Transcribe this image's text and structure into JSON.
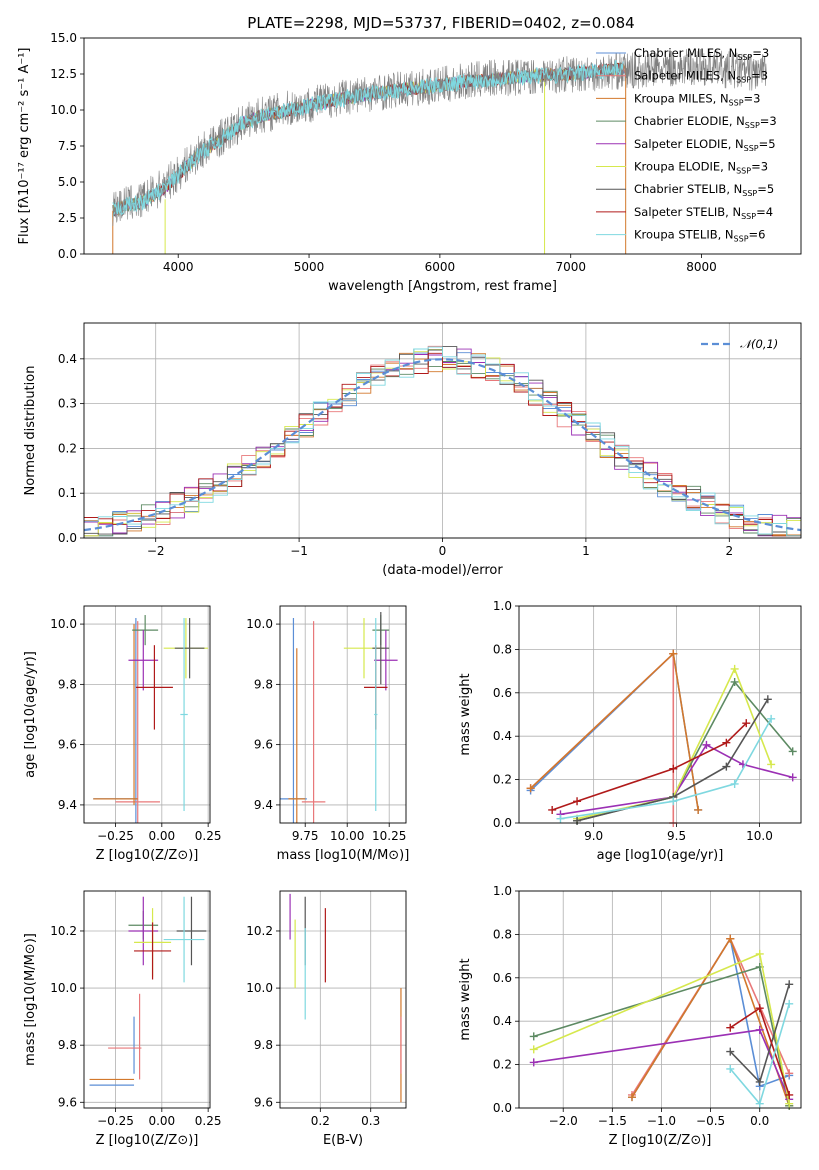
{
  "figure": {
    "title": "PLATE=2298, MJD=53737, FIBERID=0402, z=0.084"
  },
  "chart_data": [
    {
      "type": "line",
      "panel": "spectrum",
      "title": "PLATE=2298, MJD=53737, FIBERID=0402, z=0.084",
      "xlabel": "wavelength [Angstrom, rest frame]",
      "ylabel": "Flux [fλ10⁻¹⁷ erg cm⁻² s⁻¹ A⁻¹]",
      "xlim": [
        3280,
        8760
      ],
      "ylim": [
        0,
        15
      ],
      "xticks": [
        "4000",
        "5000",
        "6000",
        "7000",
        "8000"
      ],
      "yticks": [
        "0.0",
        "2.5",
        "5.0",
        "7.5",
        "10.0",
        "12.5",
        "15.0"
      ],
      "grid": false,
      "legend_position": "top-right",
      "legend": [
        {
          "label": "Chabrier MILES, N_SSP=3",
          "text": "Chabrier MILES, N",
          "sub": "SSP",
          "tail": "=3",
          "color": "#5b8ed6"
        },
        {
          "label": "Salpeter MILES, N_SSP=3",
          "text": "Salpeter MILES, N",
          "sub": "SSP",
          "tail": "=3",
          "color": "#e8787a"
        },
        {
          "label": "Kroupa MILES, N_SSP=3",
          "text": "Kroupa MILES, N",
          "sub": "SSP",
          "tail": "=3",
          "color": "#d2782c"
        },
        {
          "label": "Chabrier ELODIE, N_SSP=3",
          "text": "Chabrier ELODIE, N",
          "sub": "SSP",
          "tail": "=3",
          "color": "#5d8a63"
        },
        {
          "label": "Salpeter ELODIE, N_SSP=5",
          "text": "Salpeter ELODIE, N",
          "sub": "SSP",
          "tail": "=5",
          "color": "#9b30b4"
        },
        {
          "label": "Kroupa ELODIE, N_SSP=3",
          "text": "Kroupa ELODIE, N",
          "sub": "SSP",
          "tail": "=3",
          "color": "#d6e84d"
        },
        {
          "label": "Chabrier STELIB, N_SSP=5",
          "text": "Chabrier STELIB, N",
          "sub": "SSP",
          "tail": "=5",
          "color": "#555555"
        },
        {
          "label": "Salpeter STELIB, N_SSP=4",
          "text": "Salpeter STELIB, N",
          "sub": "SSP",
          "tail": "=4",
          "color": "#b01a1a"
        },
        {
          "label": "Kroupa STELIB, N_SSP=6",
          "text": "Kroupa STELIB, N",
          "sub": "SSP",
          "tail": "=6",
          "color": "#7fd8e0"
        }
      ],
      "series": [
        {
          "name": "data",
          "color": "#808080",
          "x": [
            3500,
            3600,
            3700,
            3800,
            3900,
            4000,
            4100,
            4200,
            4300,
            4400,
            4500,
            4600,
            4800,
            5000,
            5200,
            5400,
            5600,
            5800,
            6000,
            6200,
            6400,
            6600,
            6800,
            7000,
            7200,
            7400,
            7600,
            7800,
            8000,
            8200,
            8400
          ],
          "y": [
            3.2,
            3.5,
            3.6,
            4.2,
            4.8,
            5.6,
            6.5,
            7.3,
            7.9,
            8.5,
            9.2,
            9.6,
            10.0,
            10.4,
            10.8,
            11.1,
            11.3,
            11.5,
            11.7,
            12.0,
            12.2,
            12.3,
            12.4,
            12.5,
            12.6,
            12.7,
            12.8,
            12.9,
            13.0,
            12.8,
            12.6
          ]
        },
        {
          "name": "model",
          "color": "#7fd8e0",
          "x": [
            3500,
            3600,
            3700,
            3800,
            3900,
            4000,
            4100,
            4200,
            4300,
            4400,
            4500,
            4600,
            4800,
            5000,
            5200,
            5400,
            5600,
            5800,
            6000,
            6200,
            6400,
            6600,
            6800,
            7000,
            7200,
            7400
          ],
          "y": [
            3.0,
            3.4,
            3.5,
            4.0,
            4.6,
            5.5,
            6.4,
            7.2,
            7.8,
            8.4,
            9.1,
            9.5,
            9.9,
            10.3,
            10.7,
            11.0,
            11.3,
            11.5,
            11.7,
            12.0,
            12.1,
            12.3,
            12.4,
            12.5,
            12.7,
            12.9
          ]
        }
      ]
    },
    {
      "type": "line",
      "panel": "residual-histogram",
      "xlabel": "(data-model)/error",
      "ylabel": "Normed distribution",
      "xlim": [
        -2.5,
        2.5
      ],
      "ylim": [
        0,
        0.48
      ],
      "xticks": [
        "−2",
        "−1",
        "0",
        "1",
        "2"
      ],
      "yticks": [
        "0.0",
        "0.1",
        "0.2",
        "0.3",
        "0.4"
      ],
      "grid": true,
      "legend_position": "top-right",
      "legend": [
        {
          "label": "N(0,1)",
          "color": "#5b8ed6"
        }
      ],
      "series": [
        {
          "name": "N(0,1)",
          "color": "#5b8ed6",
          "x": [
            -2.5,
            -2.25,
            -2.0,
            -1.75,
            -1.5,
            -1.25,
            -1.0,
            -0.75,
            -0.5,
            -0.25,
            0.0,
            0.25,
            0.5,
            0.75,
            1.0,
            1.25,
            1.5,
            1.75,
            2.0,
            2.25,
            2.5
          ],
          "y": [
            0.018,
            0.032,
            0.054,
            0.086,
            0.13,
            0.183,
            0.242,
            0.301,
            0.352,
            0.387,
            0.399,
            0.387,
            0.352,
            0.301,
            0.242,
            0.183,
            0.13,
            0.086,
            0.054,
            0.032,
            0.018
          ]
        }
      ]
    },
    {
      "type": "scatter",
      "panel": "age-vs-Z",
      "xlabel": "Z [log10(Z/Z⊙)]",
      "ylabel": "age [log10(age/yr)]",
      "xlim": [
        -0.42,
        0.26
      ],
      "ylim": [
        9.34,
        10.06
      ],
      "xticks": [
        "−0.25",
        "0.00",
        "0.25"
      ],
      "yticks": [
        "9.4",
        "9.6",
        "9.8",
        "10.0"
      ],
      "grid": true
    },
    {
      "type": "scatter",
      "panel": "age-vs-mass",
      "xlabel": "mass [log10(M/M⊙)]",
      "xlim": [
        9.6,
        10.35
      ],
      "ylim": [
        9.34,
        10.06
      ],
      "xticks": [
        "9.75",
        "10.00",
        "10.25"
      ],
      "yticks": [
        "9.4",
        "9.6",
        "9.8",
        "10.0"
      ],
      "grid": true
    },
    {
      "type": "line",
      "panel": "mass-weight-vs-age",
      "xlabel": "age [log10(age/yr)]",
      "ylabel": "mass weight",
      "xlim": [
        8.55,
        10.25
      ],
      "ylim": [
        0,
        1
      ],
      "xticks": [
        "9.0",
        "9.5",
        "10.0"
      ],
      "yticks": [
        "0.0",
        "0.2",
        "0.4",
        "0.6",
        "0.8",
        "1.0"
      ],
      "grid": true,
      "series": [
        {
          "name": "Chabrier MILES",
          "color": "#5b8ed6",
          "x": [
            8.62,
            9.48,
            9.63
          ],
          "y": [
            0.15,
            0.78,
            0.06
          ]
        },
        {
          "name": "Salpeter MILES",
          "color": "#e8787a",
          "x": [
            8.62,
            9.48,
            9.48
          ],
          "y": [
            0.16,
            0.78,
            0.0
          ]
        },
        {
          "name": "Kroupa MILES",
          "color": "#d2782c",
          "x": [
            8.62,
            9.48,
            9.63
          ],
          "y": [
            0.16,
            0.78,
            0.06
          ]
        },
        {
          "name": "Chabrier ELODIE",
          "color": "#5d8a63",
          "x": [
            8.9,
            9.48,
            9.85,
            10.2
          ],
          "y": [
            0.01,
            0.12,
            0.65,
            0.33
          ]
        },
        {
          "name": "Salpeter ELODIE",
          "color": "#9b30b4",
          "x": [
            8.8,
            9.48,
            9.68,
            9.9,
            10.2
          ],
          "y": [
            0.04,
            0.12,
            0.36,
            0.27,
            0.21
          ]
        },
        {
          "name": "Kroupa ELODIE",
          "color": "#d6e84d",
          "x": [
            8.9,
            9.48,
            9.85,
            10.07
          ],
          "y": [
            0.02,
            0.12,
            0.71,
            0.27
          ]
        },
        {
          "name": "Chabrier STELIB",
          "color": "#555555",
          "x": [
            8.9,
            9.48,
            9.8,
            10.05
          ],
          "y": [
            0.01,
            0.12,
            0.26,
            0.57
          ]
        },
        {
          "name": "Salpeter STELIB",
          "color": "#b01a1a",
          "x": [
            8.75,
            8.9,
            9.48,
            9.8,
            9.92
          ],
          "y": [
            0.06,
            0.1,
            0.25,
            0.37,
            0.46
          ]
        },
        {
          "name": "Kroupa STELIB",
          "color": "#7fd8e0",
          "x": [
            8.8,
            9.48,
            9.85,
            10.07
          ],
          "y": [
            0.02,
            0.1,
            0.18,
            0.48
          ]
        }
      ]
    },
    {
      "type": "scatter",
      "panel": "mass-vs-Z",
      "xlabel": "Z [log10(Z/Z⊙)]",
      "ylabel": "mass [log10(M/M⊙)]",
      "xlim": [
        -0.42,
        0.26
      ],
      "ylim": [
        9.58,
        10.34
      ],
      "xticks": [
        "−0.25",
        "0.00",
        "0.25"
      ],
      "yticks": [
        "9.6",
        "9.8",
        "10.0",
        "10.2"
      ],
      "grid": true
    },
    {
      "type": "scatter",
      "panel": "mass-vs-EBV",
      "xlabel": "E(B-V)",
      "xlim": [
        0.12,
        0.37
      ],
      "ylim": [
        9.58,
        10.34
      ],
      "xticks": [
        "0.2",
        "0.3"
      ],
      "yticks": [
        "9.6",
        "9.8",
        "10.0",
        "10.2"
      ],
      "grid": true
    },
    {
      "type": "line",
      "panel": "mass-weight-vs-Z",
      "xlabel": "Z [log10(Z/Z⊙)]",
      "ylabel": "mass weight",
      "xlim": [
        -2.45,
        0.42
      ],
      "ylim": [
        0,
        1
      ],
      "xticks": [
        "−2.0",
        "−1.5",
        "−1.0",
        "−0.5",
        "0.0"
      ],
      "yticks": [
        "0.0",
        "0.2",
        "0.4",
        "0.6",
        "0.8",
        "1.0"
      ],
      "grid": true,
      "series": [
        {
          "name": "Chabrier MILES",
          "color": "#5b8ed6",
          "x": [
            -1.3,
            -0.3,
            0.0,
            0.3
          ],
          "y": [
            0.05,
            0.78,
            0.1,
            0.15
          ]
        },
        {
          "name": "Salpeter MILES",
          "color": "#e8787a",
          "x": [
            -1.3,
            -0.3,
            0.3
          ],
          "y": [
            0.06,
            0.78,
            0.16
          ]
        },
        {
          "name": "Kroupa MILES",
          "color": "#d2782c",
          "x": [
            -1.3,
            -0.3,
            0.3
          ],
          "y": [
            0.05,
            0.78,
            0.01
          ]
        },
        {
          "name": "Chabrier ELODIE",
          "color": "#5d8a63",
          "x": [
            -2.3,
            0.0,
            0.3
          ],
          "y": [
            0.33,
            0.65,
            0.01
          ]
        },
        {
          "name": "Salpeter ELODIE",
          "color": "#9b30b4",
          "x": [
            -2.3,
            0.0,
            0.3
          ],
          "y": [
            0.21,
            0.36,
            0.04
          ]
        },
        {
          "name": "Kroupa ELODIE",
          "color": "#d6e84d",
          "x": [
            -2.3,
            0.0,
            0.3
          ],
          "y": [
            0.27,
            0.71,
            0.02
          ]
        },
        {
          "name": "Chabrier STELIB",
          "color": "#555555",
          "x": [
            -0.3,
            0.0,
            0.3
          ],
          "y": [
            0.26,
            0.12,
            0.57
          ]
        },
        {
          "name": "Salpeter STELIB",
          "color": "#b01a1a",
          "x": [
            -0.3,
            0.0,
            0.3
          ],
          "y": [
            0.37,
            0.46,
            0.06
          ]
        },
        {
          "name": "Kroupa STELIB",
          "color": "#7fd8e0",
          "x": [
            -0.3,
            0.0,
            0.3
          ],
          "y": [
            0.18,
            0.02,
            0.48
          ]
        }
      ]
    }
  ]
}
